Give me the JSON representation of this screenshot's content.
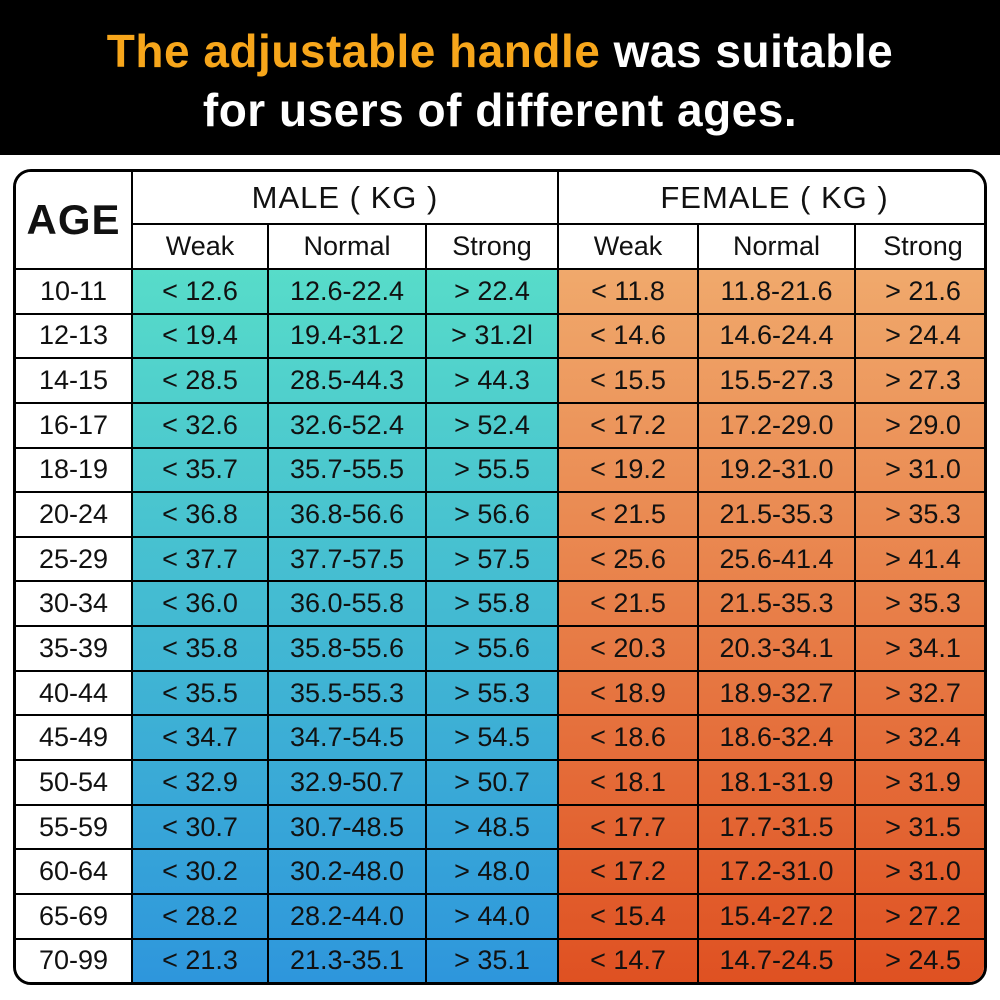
{
  "banner": {
    "title_accent": "The adjustable handle",
    "title_rest": " was suitable",
    "title_line2": "for users of different ages."
  },
  "colors": {
    "banner_bg": "#000000",
    "title_accent": "#f7a61b",
    "title_white": "#ffffff",
    "male_gradient_top": "#57dcc9",
    "male_gradient_bottom": "#2e96dc",
    "female_gradient_top": "#f0a96c",
    "female_gradient_bottom": "#df5122",
    "table_border": "#000000"
  },
  "table": {
    "age_header": "AGE",
    "male_header": "MALE ( KG )",
    "female_header": "FEMALE ( KG )",
    "sub_headers": [
      "Weak",
      "Normal",
      "Strong"
    ],
    "rows": [
      {
        "age": "10-11",
        "male": [
          "< 12.6",
          "12.6-22.4",
          "> 22.4"
        ],
        "female": [
          "< 11.8",
          "11.8-21.6",
          "> 21.6"
        ]
      },
      {
        "age": "12-13",
        "male": [
          "< 19.4",
          "19.4-31.2",
          "> 31.2l"
        ],
        "female": [
          "< 14.6",
          "14.6-24.4",
          "> 24.4"
        ]
      },
      {
        "age": "14-15",
        "male": [
          "< 28.5",
          "28.5-44.3",
          "> 44.3"
        ],
        "female": [
          "< 15.5",
          "15.5-27.3",
          "> 27.3"
        ]
      },
      {
        "age": "16-17",
        "male": [
          "< 32.6",
          "32.6-52.4",
          "> 52.4"
        ],
        "female": [
          "< 17.2",
          "17.2-29.0",
          "> 29.0"
        ]
      },
      {
        "age": "18-19",
        "male": [
          "< 35.7",
          "35.7-55.5",
          "> 55.5"
        ],
        "female": [
          "< 19.2",
          "19.2-31.0",
          "> 31.0"
        ]
      },
      {
        "age": "20-24",
        "male": [
          "< 36.8",
          "36.8-56.6",
          "> 56.6"
        ],
        "female": [
          "< 21.5",
          "21.5-35.3",
          "> 35.3"
        ]
      },
      {
        "age": "25-29",
        "male": [
          "< 37.7",
          "37.7-57.5",
          "> 57.5"
        ],
        "female": [
          "< 25.6",
          "25.6-41.4",
          "> 41.4"
        ]
      },
      {
        "age": "30-34",
        "male": [
          "< 36.0",
          "36.0-55.8",
          "> 55.8"
        ],
        "female": [
          "< 21.5",
          "21.5-35.3",
          "> 35.3"
        ]
      },
      {
        "age": "35-39",
        "male": [
          "< 35.8",
          "35.8-55.6",
          "> 55.6"
        ],
        "female": [
          "< 20.3",
          "20.3-34.1",
          "> 34.1"
        ]
      },
      {
        "age": "40-44",
        "male": [
          "< 35.5",
          "35.5-55.3",
          "> 55.3"
        ],
        "female": [
          "< 18.9",
          "18.9-32.7",
          "> 32.7"
        ]
      },
      {
        "age": "45-49",
        "male": [
          "< 34.7",
          "34.7-54.5",
          "> 54.5"
        ],
        "female": [
          "< 18.6",
          "18.6-32.4",
          "> 32.4"
        ]
      },
      {
        "age": "50-54",
        "male": [
          "< 32.9",
          "32.9-50.7",
          "> 50.7"
        ],
        "female": [
          "< 18.1",
          "18.1-31.9",
          "> 31.9"
        ]
      },
      {
        "age": "55-59",
        "male": [
          "< 30.7",
          "30.7-48.5",
          "> 48.5"
        ],
        "female": [
          "< 17.7",
          "17.7-31.5",
          "> 31.5"
        ]
      },
      {
        "age": "60-64",
        "male": [
          "< 30.2",
          "30.2-48.0",
          "> 48.0"
        ],
        "female": [
          "< 17.2",
          "17.2-31.0",
          "> 31.0"
        ]
      },
      {
        "age": "65-69",
        "male": [
          "< 28.2",
          "28.2-44.0",
          "> 44.0"
        ],
        "female": [
          "< 15.4",
          "15.4-27.2",
          "> 27.2"
        ]
      },
      {
        "age": "70-99",
        "male": [
          "< 21.3",
          "21.3-35.1",
          "> 35.1"
        ],
        "female": [
          "< 14.7",
          "14.7-24.5",
          "> 24.5"
        ]
      }
    ]
  },
  "chart_data": {
    "type": "table",
    "title": "The adjustable handle was suitable for users of different ages.",
    "columns": [
      "AGE",
      "MALE (KG) Weak",
      "MALE (KG) Normal",
      "MALE (KG) Strong",
      "FEMALE (KG) Weak",
      "FEMALE (KG) Normal",
      "FEMALE (KG) Strong"
    ],
    "rows": [
      [
        "10-11",
        "< 12.6",
        "12.6-22.4",
        "> 22.4",
        "< 11.8",
        "11.8-21.6",
        "> 21.6"
      ],
      [
        "12-13",
        "< 19.4",
        "19.4-31.2",
        "> 31.2l",
        "< 14.6",
        "14.6-24.4",
        "> 24.4"
      ],
      [
        "14-15",
        "< 28.5",
        "28.5-44.3",
        "> 44.3",
        "< 15.5",
        "15.5-27.3",
        "> 27.3"
      ],
      [
        "16-17",
        "< 32.6",
        "32.6-52.4",
        "> 52.4",
        "< 17.2",
        "17.2-29.0",
        "> 29.0"
      ],
      [
        "18-19",
        "< 35.7",
        "35.7-55.5",
        "> 55.5",
        "< 19.2",
        "19.2-31.0",
        "> 31.0"
      ],
      [
        "20-24",
        "< 36.8",
        "36.8-56.6",
        "> 56.6",
        "< 21.5",
        "21.5-35.3",
        "> 35.3"
      ],
      [
        "25-29",
        "< 37.7",
        "37.7-57.5",
        "> 57.5",
        "< 25.6",
        "25.6-41.4",
        "> 41.4"
      ],
      [
        "30-34",
        "< 36.0",
        "36.0-55.8",
        "> 55.8",
        "< 21.5",
        "21.5-35.3",
        "> 35.3"
      ],
      [
        "35-39",
        "< 35.8",
        "35.8-55.6",
        "> 55.6",
        "< 20.3",
        "20.3-34.1",
        "> 34.1"
      ],
      [
        "40-44",
        "< 35.5",
        "35.5-55.3",
        "> 55.3",
        "< 18.9",
        "18.9-32.7",
        "> 32.7"
      ],
      [
        "45-49",
        "< 34.7",
        "34.7-54.5",
        "> 54.5",
        "< 18.6",
        "18.6-32.4",
        "> 32.4"
      ],
      [
        "50-54",
        "< 32.9",
        "32.9-50.7",
        "> 50.7",
        "< 18.1",
        "18.1-31.9",
        "> 31.9"
      ],
      [
        "55-59",
        "< 30.7",
        "30.7-48.5",
        "> 48.5",
        "< 17.7",
        "17.7-31.5",
        "> 31.5"
      ],
      [
        "60-64",
        "< 30.2",
        "30.2-48.0",
        "> 48.0",
        "< 17.2",
        "17.2-31.0",
        "> 31.0"
      ],
      [
        "65-69",
        "< 28.2",
        "28.2-44.0",
        "> 44.0",
        "< 15.4",
        "15.4-27.2",
        "> 27.2"
      ],
      [
        "70-99",
        "< 21.3",
        "21.3-35.1",
        "> 35.1",
        "< 14.7",
        "14.7-24.5",
        "> 24.5"
      ]
    ],
    "layout": {
      "male_column_fill": "vertical gradient #57dcc9 to #2e96dc",
      "female_column_fill": "vertical gradient #f0a96c to #df5122",
      "grid": "black 2px lines, rounded outer border"
    }
  }
}
